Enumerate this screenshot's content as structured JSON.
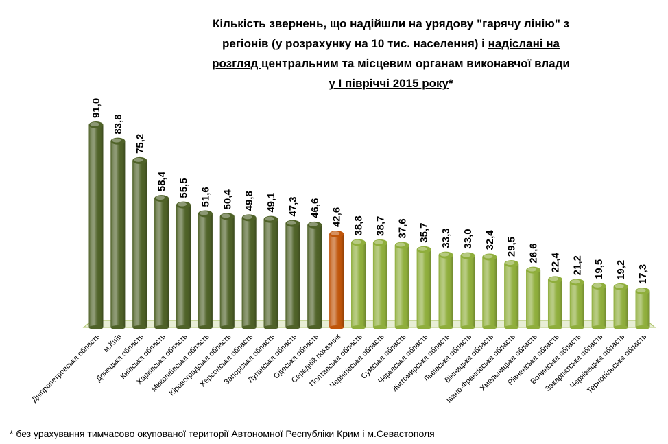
{
  "title": {
    "line1": "Кількість звернень,  що надійшли на урядову \"гарячу лінію\" з",
    "line2a": "регіонів (у розрахунку на 10 тис. населення) і  ",
    "line2b": "надіслані на",
    "line3a": "розгляд ",
    "line3b": "центральним та місцевим органам виконавчої влади",
    "line4a": "у І півріччі 2015 року",
    "line4b": "*"
  },
  "footnote": "*  без урахування тимчасово окупованої території Автономної Республіки Крим і м.Севастополя",
  "colors": {
    "above_average": "#4f6228",
    "average": "#c0550a",
    "below_average": "#8fae3c",
    "floor": "#a8c060"
  },
  "chart_data": {
    "type": "bar",
    "title": "Кількість звернень,  що надійшли на урядову \"гарячу лінію\" з регіонів (у розрахунку на 10 тис. населення) і  надіслані на розгляд центральним та місцевим органам виконавчої влади у І півріччі 2015 року*",
    "categories": [
      "Дніпропетровська область",
      "м.Київ",
      "Донецька область",
      "Київська область",
      "Харківська область",
      "Миколаївська область",
      "Кіровоградська область",
      "Херсонська область",
      "Запорізька область",
      "Луганська область",
      "Одеська область",
      "Середній показник",
      "Полтавська область",
      "Чернігівська область",
      "Сумська область",
      "Черкаська область",
      "Житомирська область",
      "Львівська область",
      "Вінницька область",
      "Івано-Франківська область",
      "Хмельницька область",
      "Рівненська область",
      "Волинська область",
      "Закарпатська область",
      "Чернівецька область",
      "Тернопільська область"
    ],
    "values": [
      91.0,
      83.8,
      75.2,
      58.4,
      55.5,
      51.6,
      50.4,
      49.8,
      49.1,
      47.3,
      46.6,
      42.6,
      38.8,
      38.7,
      37.6,
      35.7,
      33.3,
      33.0,
      32.4,
      29.5,
      26.6,
      22.4,
      21.2,
      19.5,
      19.2,
      17.3
    ],
    "labels": [
      "91,0",
      "83,8",
      "75,2",
      "58,4",
      "55,5",
      "51,6",
      "50,4",
      "49,8",
      "49,1",
      "47,3",
      "46,6",
      "42,6",
      "38,8",
      "38,7",
      "37,6",
      "35,7",
      "33,3",
      "33,0",
      "32,4",
      "29,5",
      "26,6",
      "22,4",
      "21,2",
      "19,5",
      "19,2",
      "17,3"
    ],
    "average_index": 11,
    "ylim": [
      0,
      91
    ],
    "grid": false,
    "legend": "none"
  }
}
